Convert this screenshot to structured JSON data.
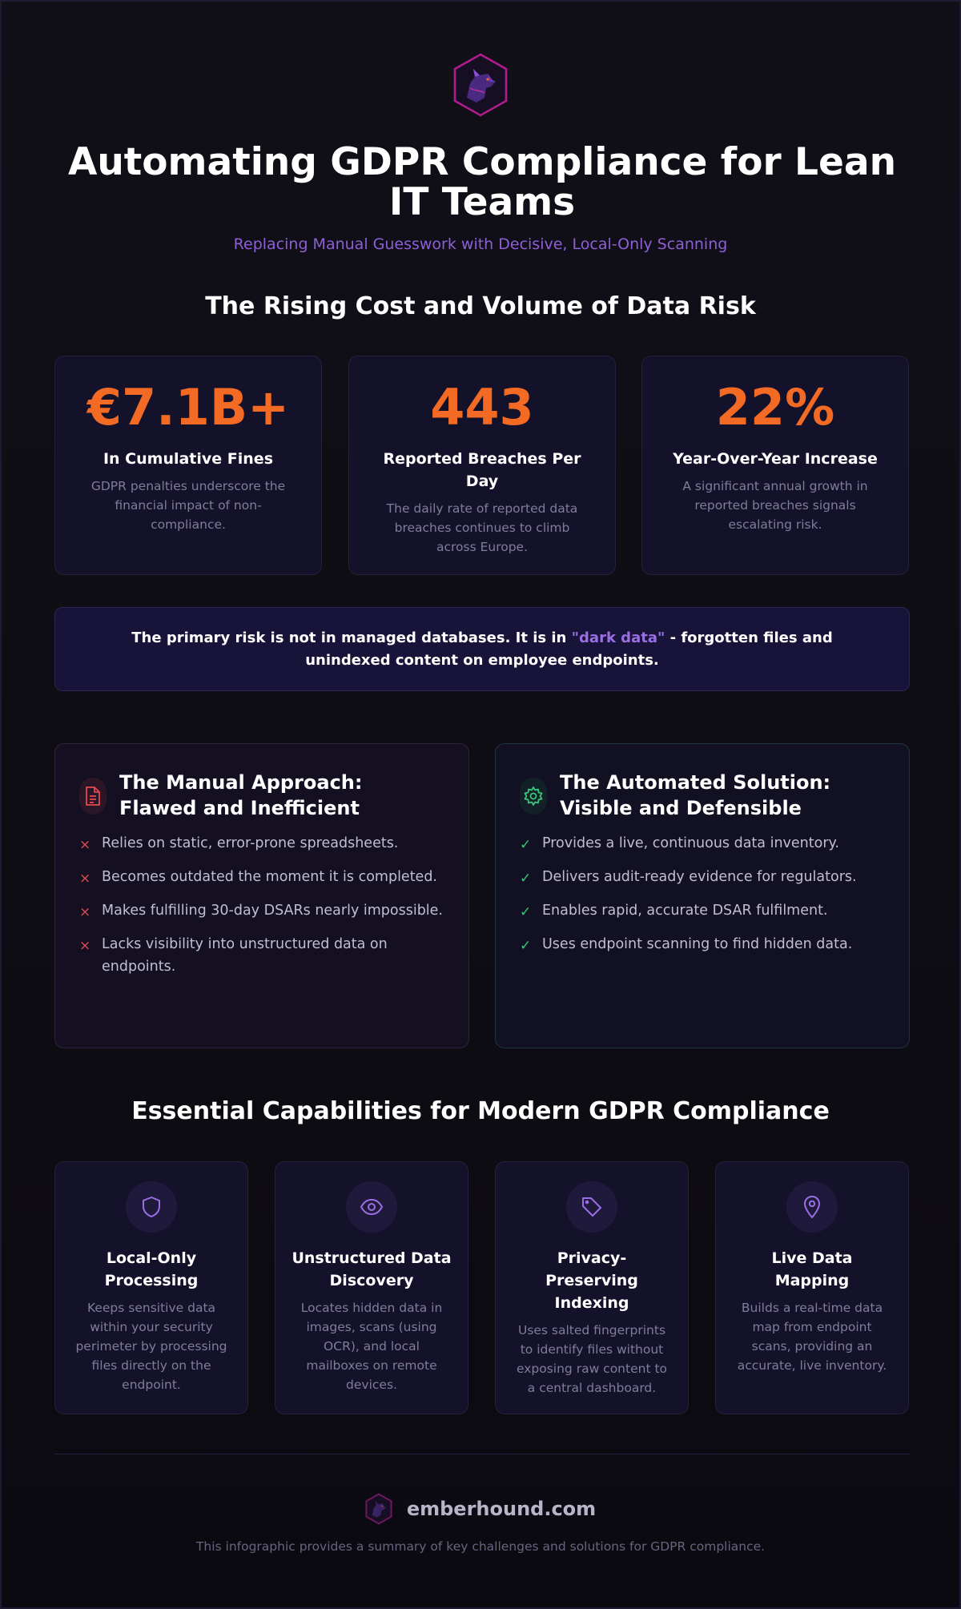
{
  "header": {
    "title": "Automating GDPR Compliance for Lean IT Teams",
    "subtitle": "Replacing Manual Guesswork with Decisive, Local-Only Scanning",
    "logo_icon": "hexagon-wolf-logo"
  },
  "stats_section": {
    "heading": "The Rising Cost and Volume of Data Risk",
    "cards": [
      {
        "value": "€7.1B+",
        "label": "In Cumulative Fines",
        "description": "GDPR penalties underscore the financial impact of non-compliance."
      },
      {
        "value": "443",
        "label": "Reported Breaches Per Day",
        "description": "The daily rate of reported data breaches continues to climb across Europe."
      },
      {
        "value": "22%",
        "label": "Year-Over-Year Increase",
        "description": "A significant annual growth in reported breaches signals escalating risk."
      }
    ]
  },
  "banner": {
    "text_before": "The primary risk is not in managed databases. It is in ",
    "highlight": "\"dark data\"",
    "text_after": " - forgotten files and unindexed content on employee endpoints."
  },
  "comparison": {
    "manual": {
      "title": "The Manual Approach: Flawed and Inefficient",
      "icon": "document-icon",
      "mark": "×",
      "items": [
        "Relies on static, error-prone spreadsheets.",
        "Becomes outdated the moment it is completed.",
        "Makes fulfilling 30-day DSARs nearly impossible.",
        "Lacks visibility into unstructured data on endpoints."
      ]
    },
    "automated": {
      "title": "The Automated Solution: Visible and Defensible",
      "icon": "gear-icon",
      "mark": "✓",
      "items": [
        "Provides a live, continuous data inventory.",
        "Delivers audit-ready evidence for regulators.",
        "Enables rapid, accurate DSAR fulfilment.",
        "Uses endpoint scanning to find hidden data."
      ]
    }
  },
  "capabilities": {
    "heading": "Essential Capabilities for Modern GDPR Compliance",
    "cards": [
      {
        "icon": "shield-icon",
        "title": "Local-Only Processing",
        "description": "Keeps sensitive data within your security perimeter by processing files directly on the endpoint."
      },
      {
        "icon": "eye-icon",
        "title": "Unstructured Data Discovery",
        "description": "Locates hidden data in images, scans (using OCR), and local mailboxes on remote devices."
      },
      {
        "icon": "tag-icon",
        "title": "Privacy-Preserving Indexing",
        "description": "Uses salted fingerprints to identify files without exposing raw content to a central dashboard."
      },
      {
        "icon": "map-pin-icon",
        "title": "Live Data Mapping",
        "description": "Builds a real-time data map from endpoint scans, providing an accurate, live inventory."
      }
    ]
  },
  "footer": {
    "brand": "emberhound.com",
    "note": "This infographic provides a summary of key challenges and solutions for GDPR compliance."
  },
  "colors": {
    "background": "#0f0d14",
    "accent_orange": "#f26a24",
    "accent_purple": "#8e5fd6",
    "error_red": "#e24a50",
    "success_green": "#3cc47a"
  }
}
